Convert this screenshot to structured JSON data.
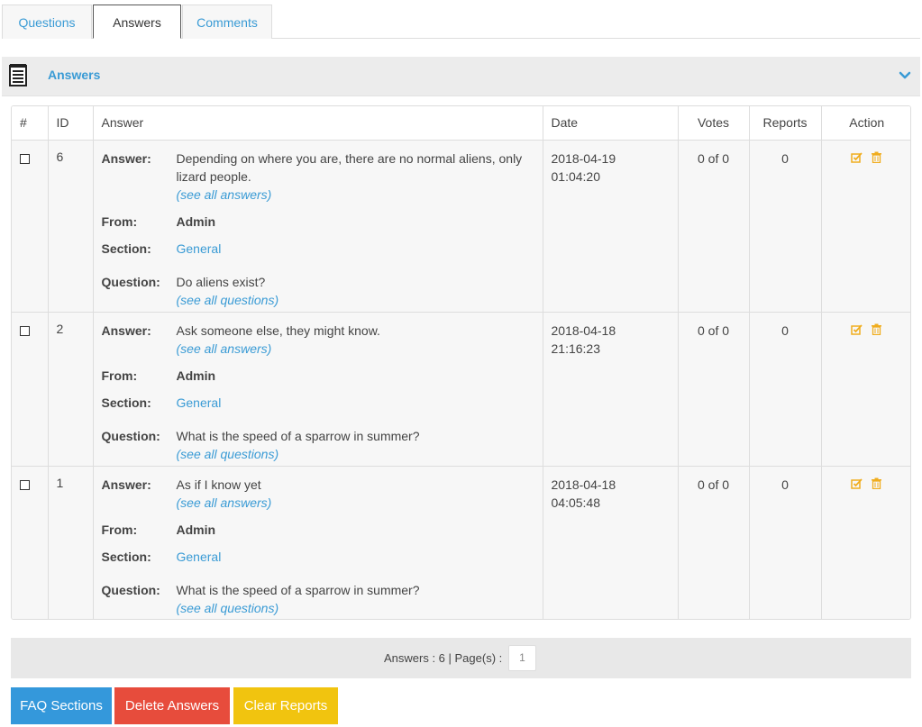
{
  "tabs": [
    {
      "label": "Questions",
      "active": false
    },
    {
      "label": "Answers",
      "active": true
    },
    {
      "label": "Comments",
      "active": false
    }
  ],
  "panel": {
    "title": "Answers",
    "icon": "document-list-icon",
    "toggle_icon": "chevron-down-icon"
  },
  "table": {
    "headers": {
      "num": "#",
      "id": "ID",
      "answer": "Answer",
      "date": "Date",
      "votes": "Votes",
      "reports": "Reports",
      "action": "Action"
    },
    "labels": {
      "answer": "Answer:",
      "from": "From:",
      "section": "Section:",
      "question": "Question:",
      "see_all_answers": "(see all answers)",
      "see_all_questions": "(see all questions)"
    },
    "rows": [
      {
        "id": "6",
        "answer": "Depending on where you are, there are no normal aliens, only lizard people.",
        "from": "Admin",
        "section": "General",
        "question": "Do aliens exist?",
        "date_line1": "2018-04-19",
        "date_line2": "01:04:20",
        "votes": "0 of 0",
        "reports": "0"
      },
      {
        "id": "2",
        "answer": "Ask someone else, they might know.",
        "from": "Admin",
        "section": "General",
        "question": "What is the speed of a sparrow in summer?",
        "date_line1": "2018-04-18",
        "date_line2": "21:16:23",
        "votes": "0 of 0",
        "reports": "0"
      },
      {
        "id": "1",
        "answer": "As if I know yet",
        "from": "Admin",
        "section": "General",
        "question": "What is the speed of a sparrow in summer?",
        "date_line1": "2018-04-18",
        "date_line2": "04:05:48",
        "votes": "0 of 0",
        "reports": "0"
      }
    ]
  },
  "pager": {
    "summary": "Answers : 6 | Page(s) :",
    "page": "1"
  },
  "buttons": {
    "faq_sections": "FAQ Sections",
    "delete_answers": "Delete Answers",
    "clear_reports": "Clear Reports"
  },
  "colors": {
    "link": "#3a9bd5",
    "action_icon": "#f0ad1e",
    "faq_button": "#3498db",
    "delete_button": "#e74c3c",
    "clear_button": "#f1c40f"
  }
}
